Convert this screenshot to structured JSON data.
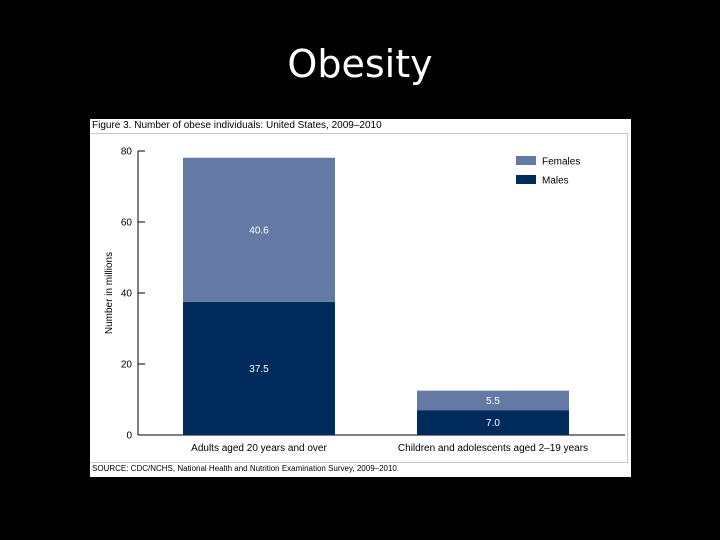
{
  "slide": {
    "title": "Obesity"
  },
  "figure": {
    "caption": "Figure 3. Number of obese individuals: United States, 2009–2010",
    "source": "SOURCE: CDC/NCHS, National Health and Nutrition Examination Survey, 2009–2010."
  },
  "colors": {
    "females": "#6479a3",
    "males": "#002b5c",
    "label_on_females": "#ffffff",
    "label_on_males": "#ffffff"
  },
  "chart_data": {
    "type": "bar",
    "stacked": true,
    "title": "Number of obese individuals: United States, 2009–2010",
    "ylabel": "Number in millions",
    "ylim": [
      0,
      80
    ],
    "yticks": [
      0,
      20,
      40,
      60,
      80
    ],
    "categories": [
      "Adults aged 20 years and over",
      "Children and adolescents aged 2–19 years"
    ],
    "series": [
      {
        "name": "Males",
        "values": [
          37.5,
          7.0
        ],
        "labels": [
          "37.5",
          "7.0"
        ]
      },
      {
        "name": "Females",
        "values": [
          40.6,
          5.5
        ],
        "labels": [
          "40.6",
          "5.5"
        ]
      }
    ],
    "legend": {
      "position": "top-right",
      "order": [
        "Females",
        "Males"
      ]
    }
  }
}
